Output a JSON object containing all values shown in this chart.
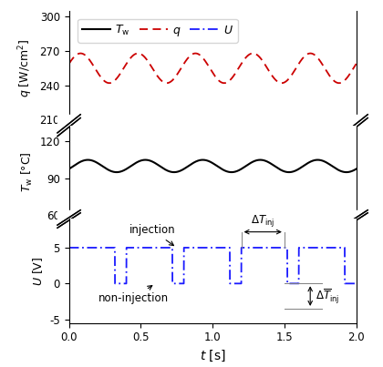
{
  "q_color": "#cc0000",
  "Tw_color": "#000000",
  "U_color": "#1a1aff",
  "freq": 2.5,
  "DC": 0.8,
  "period": 0.4,
  "q_mean": 255.0,
  "q_amp": 13.0,
  "q_phase": 0.3,
  "Tw_mean": 100.0,
  "Tw_amp": 5.0,
  "Tw_phase": -0.5,
  "U_high": 5.0,
  "U_low": 0.0,
  "q_ylim": [
    228,
    285
  ],
  "q_yticks": [
    240,
    270
  ],
  "Tw_ylim": [
    78,
    130
  ],
  "Tw_yticks": [
    90,
    120
  ],
  "U_ylim": [
    -5.5,
    9
  ],
  "U_yticks": [
    -5,
    0,
    5
  ],
  "xlim": [
    0.0,
    2.0
  ],
  "xticks": [
    0.0,
    0.5,
    1.0,
    1.5,
    2.0
  ],
  "q_300_tick": 300,
  "q_210_tick": 210,
  "Tw_60_tick": 60,
  "figsize": [
    4.2,
    4.03
  ]
}
